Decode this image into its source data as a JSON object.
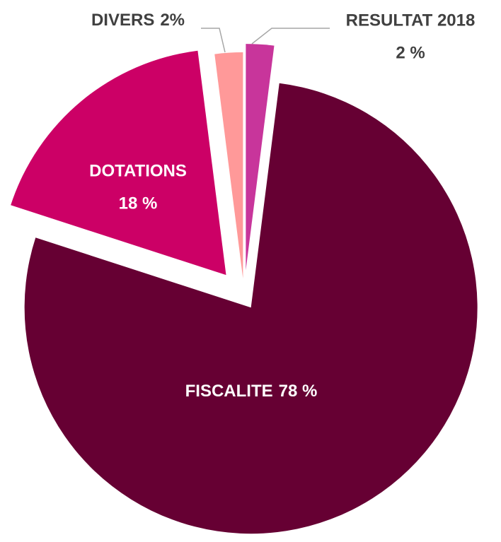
{
  "chart_data": {
    "type": "pie",
    "categories": [
      "RESULTAT 2018",
      "FISCALITE",
      "DOTATIONS",
      "DIVERS"
    ],
    "values": [
      2,
      78,
      18,
      2
    ],
    "value_labels": [
      "2 %",
      "78 %",
      "18 %",
      "2%"
    ],
    "colors": [
      "#c8359b",
      "#660033",
      "#cc0066",
      "#ff9999"
    ]
  }
}
